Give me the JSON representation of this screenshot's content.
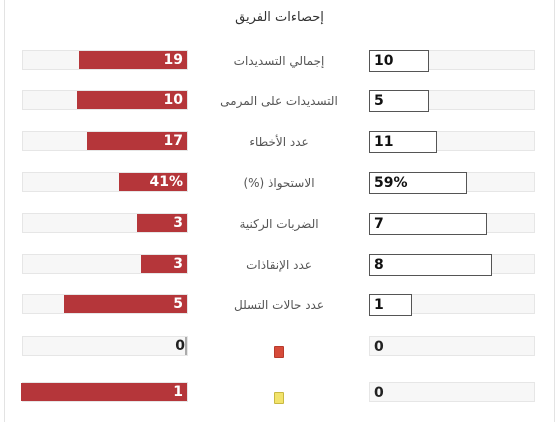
{
  "title": "إحصاءات الفريق",
  "colors": {
    "left_bar": "#b5363a",
    "red_card": "#d64b3a",
    "yellow_card": "#f2e36b"
  },
  "rows": [
    {
      "label": "إجمالي التسديدات",
      "left": "19",
      "right": "10",
      "left_fraction": 0.65,
      "right_fraction": 0.36
    },
    {
      "label": "التسديدات على المرمى",
      "left": "10",
      "right": "5",
      "left_fraction": 0.66,
      "right_fraction": 0.36
    },
    {
      "label": "عدد الأخطاء",
      "left": "17",
      "right": "11",
      "left_fraction": 0.6,
      "right_fraction": 0.41
    },
    {
      "label": "الاستحواذ (%)",
      "left": "41%",
      "right": "59%",
      "left_fraction": 0.41,
      "right_fraction": 0.59
    },
    {
      "label": "الضربات الركنية",
      "left": "3",
      "right": "7",
      "left_fraction": 0.3,
      "right_fraction": 0.71
    },
    {
      "label": "عدد الإنقاذات",
      "left": "3",
      "right": "8",
      "left_fraction": 0.28,
      "right_fraction": 0.74
    },
    {
      "label": "عدد حالات التسلل",
      "left": "5",
      "right": "1",
      "left_fraction": 0.74,
      "right_fraction": 0.26
    },
    {
      "label": "",
      "icon": "red-card-icon",
      "left": "0",
      "right": "0",
      "left_fraction": 0,
      "right_fraction": 0
    },
    {
      "label": "",
      "icon": "yellow-card-icon",
      "left": "1",
      "right": "0",
      "left_fraction": 1.0,
      "right_fraction": 0
    }
  ]
}
